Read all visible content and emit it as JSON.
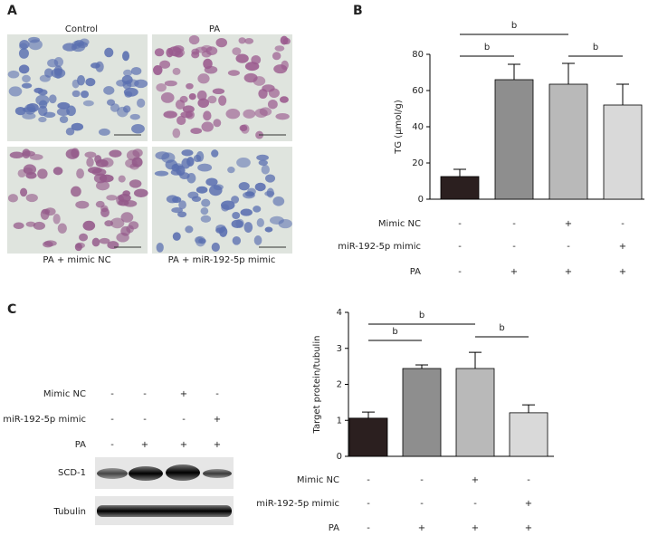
{
  "panels": [
    "A",
    "B",
    "C"
  ],
  "images": [
    "Control",
    "PA",
    "PA + mimic NC",
    "PA + miR-192-5p mimic"
  ],
  "blot": {
    "conditions": [
      {
        "label": "Mimic NC",
        "signs": [
          "-",
          "-",
          "+",
          "-"
        ]
      },
      {
        "label": "miR-192-5p mimic",
        "signs": [
          "-",
          "-",
          "-",
          "+"
        ]
      },
      {
        "label": "PA",
        "signs": [
          "-",
          "+",
          "+",
          "+"
        ]
      }
    ],
    "bands": [
      "SCD-1",
      "Tubulin"
    ]
  },
  "chart_data": [
    {
      "type": "bar",
      "ylabel": "TG (μmol/g)",
      "values": [
        12.5,
        66,
        63.5,
        52
      ],
      "errors": [
        4,
        8.5,
        11.5,
        11.5
      ],
      "colors": [
        "#2b1f1f",
        "#8e8e8e",
        "#b9b9b9",
        "#d9d9d9"
      ],
      "ylim": [
        0,
        80
      ],
      "yticks": [
        0,
        20,
        40,
        60,
        80
      ],
      "brackets": [
        {
          "from": 0,
          "to": 1,
          "label": "b"
        },
        {
          "from": 0,
          "to": 2,
          "label": "b"
        },
        {
          "from": 2,
          "to": 3,
          "label": "b"
        }
      ],
      "conditions": [
        {
          "label": "Mimic NC",
          "signs": [
            "-",
            "-",
            "+",
            "-"
          ]
        },
        {
          "label": "miR-192-5p mimic",
          "signs": [
            "-",
            "-",
            "-",
            "+"
          ]
        },
        {
          "label": "PA",
          "signs": [
            "-",
            "+",
            "+",
            "+"
          ]
        }
      ]
    },
    {
      "type": "bar",
      "ylabel": "Target protein/tubulin",
      "values": [
        1.06,
        2.44,
        2.44,
        1.21
      ],
      "errors": [
        0.17,
        0.1,
        0.45,
        0.22
      ],
      "colors": [
        "#2b1f1f",
        "#8e8e8e",
        "#b9b9b9",
        "#d9d9d9"
      ],
      "ylim": [
        0,
        4
      ],
      "yticks": [
        0,
        1,
        2,
        3,
        4
      ],
      "brackets": [
        {
          "from": 0,
          "to": 1,
          "label": "b"
        },
        {
          "from": 0,
          "to": 2,
          "label": "b"
        },
        {
          "from": 2,
          "to": 3,
          "label": "b"
        }
      ],
      "conditions": [
        {
          "label": "Mimic NC",
          "signs": [
            "-",
            "-",
            "+",
            "-"
          ]
        },
        {
          "label": "miR-192-5p mimic",
          "signs": [
            "-",
            "-",
            "-",
            "+"
          ]
        },
        {
          "label": "PA",
          "signs": [
            "-",
            "+",
            "+",
            "+"
          ]
        }
      ]
    }
  ]
}
